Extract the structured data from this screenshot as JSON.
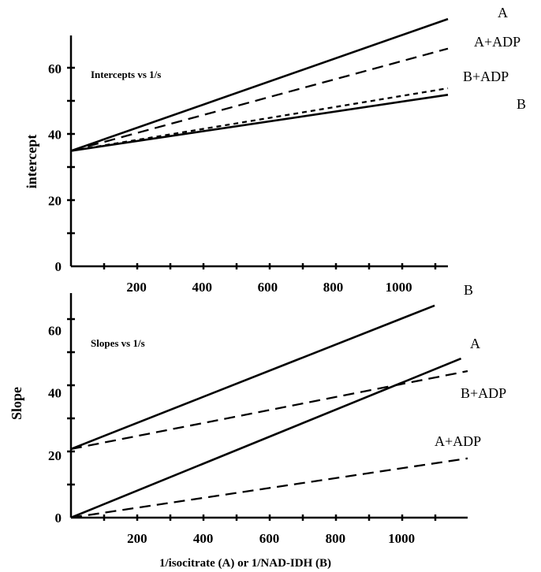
{
  "chart_data": [
    {
      "type": "line",
      "title": "Intercepts vs 1/s",
      "xlabel": "",
      "ylabel": "intercept",
      "xlim": [
        0,
        1150
      ],
      "ylim": [
        0,
        70
      ],
      "x_ticks": [
        "200",
        "400",
        "600",
        "800",
        "1000"
      ],
      "y_ticks": [
        "0",
        "20",
        "40",
        "60"
      ],
      "grid": false,
      "series": [
        {
          "name": "A",
          "style": "solid",
          "x": [
            0,
            1150
          ],
          "y": [
            35,
            75
          ]
        },
        {
          "name": "A+ADP",
          "style": "dashed",
          "x": [
            0,
            1150
          ],
          "y": [
            35,
            66
          ]
        },
        {
          "name": "B+ADP",
          "style": "dotted",
          "x": [
            0,
            1150
          ],
          "y": [
            35,
            54
          ]
        },
        {
          "name": "B",
          "style": "solid",
          "x": [
            0,
            1150
          ],
          "y": [
            35,
            52
          ]
        }
      ]
    },
    {
      "type": "line",
      "title": "Slopes vs 1/s",
      "xlabel": "1/isocitrate (A) or 1/NAD-IDH (B)",
      "ylabel": "Slope",
      "xlim": [
        0,
        1200
      ],
      "ylim": [
        0,
        72
      ],
      "x_ticks": [
        "200",
        "400",
        "600",
        "800",
        "1000"
      ],
      "y_ticks": [
        "0",
        "20",
        "40",
        "60"
      ],
      "grid": false,
      "series": [
        {
          "name": "B",
          "style": "solid",
          "x": [
            0,
            1100
          ],
          "y": [
            22,
            68
          ]
        },
        {
          "name": "A",
          "style": "solid",
          "x": [
            0,
            1180
          ],
          "y": [
            0,
            51
          ]
        },
        {
          "name": "B+ADP",
          "style": "dashed",
          "x": [
            0,
            1200
          ],
          "y": [
            22,
            47
          ]
        },
        {
          "name": "A+ADP",
          "style": "dashed",
          "x": [
            0,
            1200
          ],
          "y": [
            0,
            19
          ]
        }
      ]
    }
  ]
}
